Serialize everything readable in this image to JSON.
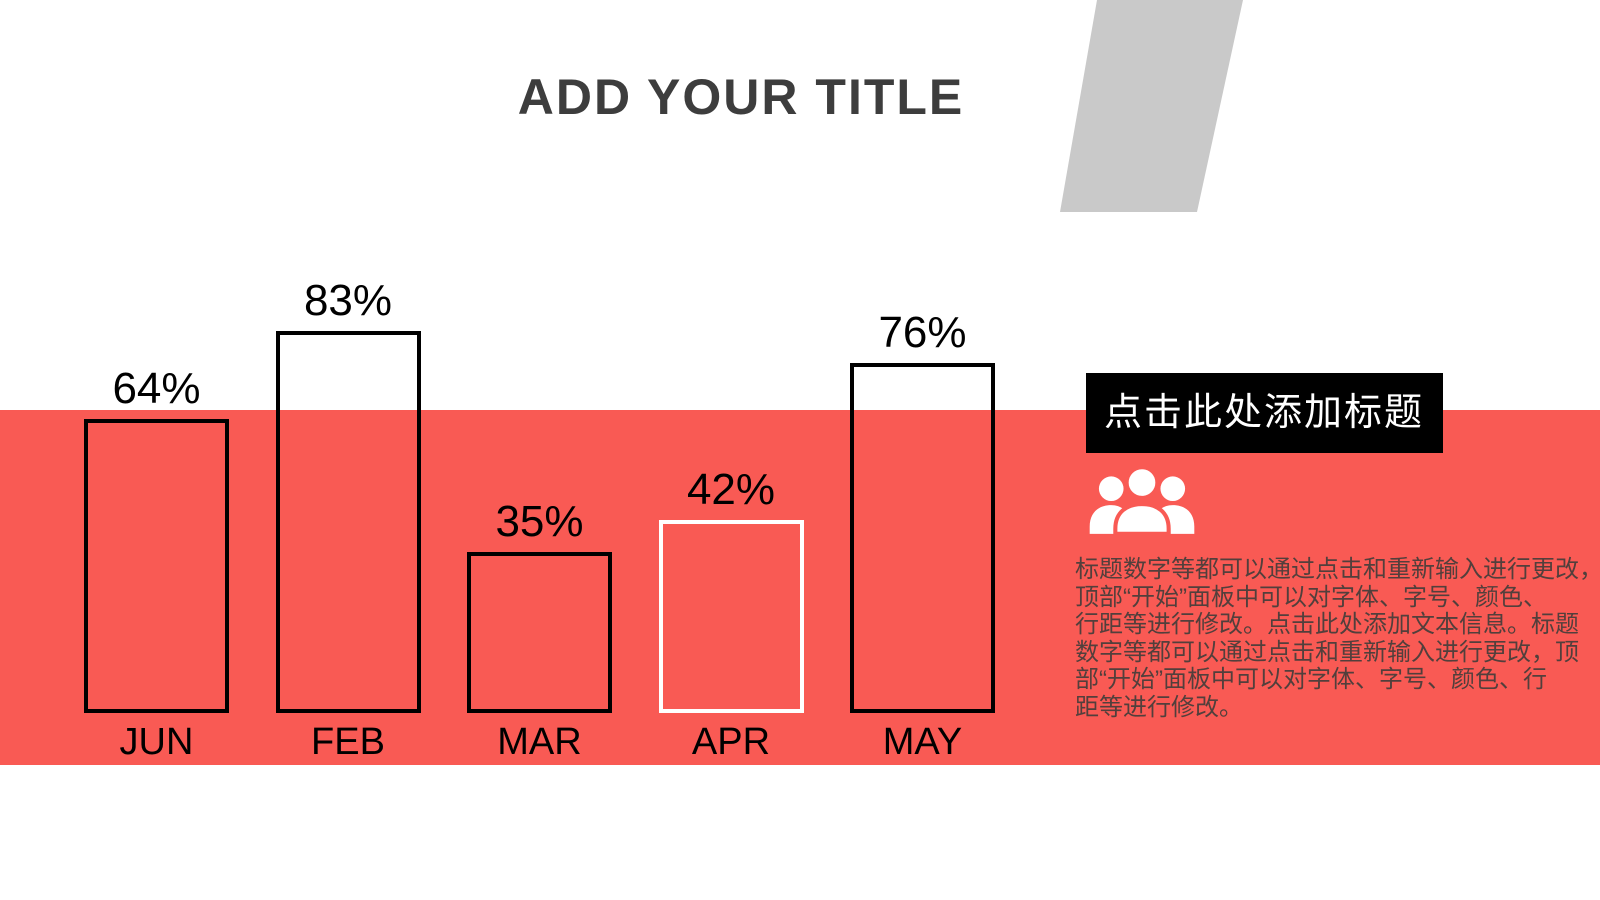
{
  "slide": {
    "title": "ADD YOUR TITLE",
    "accent_color": "#F95A54",
    "shape_color": "#C9C9C9",
    "title_color": "#3D3D3D"
  },
  "chart_data": {
    "type": "bar",
    "categories": [
      "JUN",
      "FEB",
      "MAR",
      "APR",
      "MAY"
    ],
    "values": [
      64,
      83,
      35,
      42,
      76
    ],
    "value_labels": [
      "64%",
      "83%",
      "35%",
      "42%",
      "76%"
    ],
    "title": "",
    "xlabel": "",
    "ylabel": "",
    "ylim": [
      0,
      100
    ],
    "grid": false,
    "legend": false,
    "bar_fill": "transparent",
    "bar_outline_colors": [
      "#000000",
      "#000000",
      "#000000",
      "#FFFFFF",
      "#000000"
    ],
    "label_color": "#000000"
  },
  "callout": {
    "heading": "点击此处添加标题",
    "heading_bg": "#000000",
    "heading_color": "#FFFFFF",
    "icon": "people-group-icon",
    "body_color": "#523F3C",
    "body_lines": [
      "标题数字等都可以通过点击和重新输入进行更改，",
      "顶部“开始”面板中可以对字体、字号、颜色、",
      "行距等进行修改。点击此处添加文本信息。标题",
      "数字等都可以通过点击和重新输入进行更改，顶",
      "部“开始”面板中可以对字体、字号、颜色、行",
      "距等进行修改。"
    ]
  }
}
